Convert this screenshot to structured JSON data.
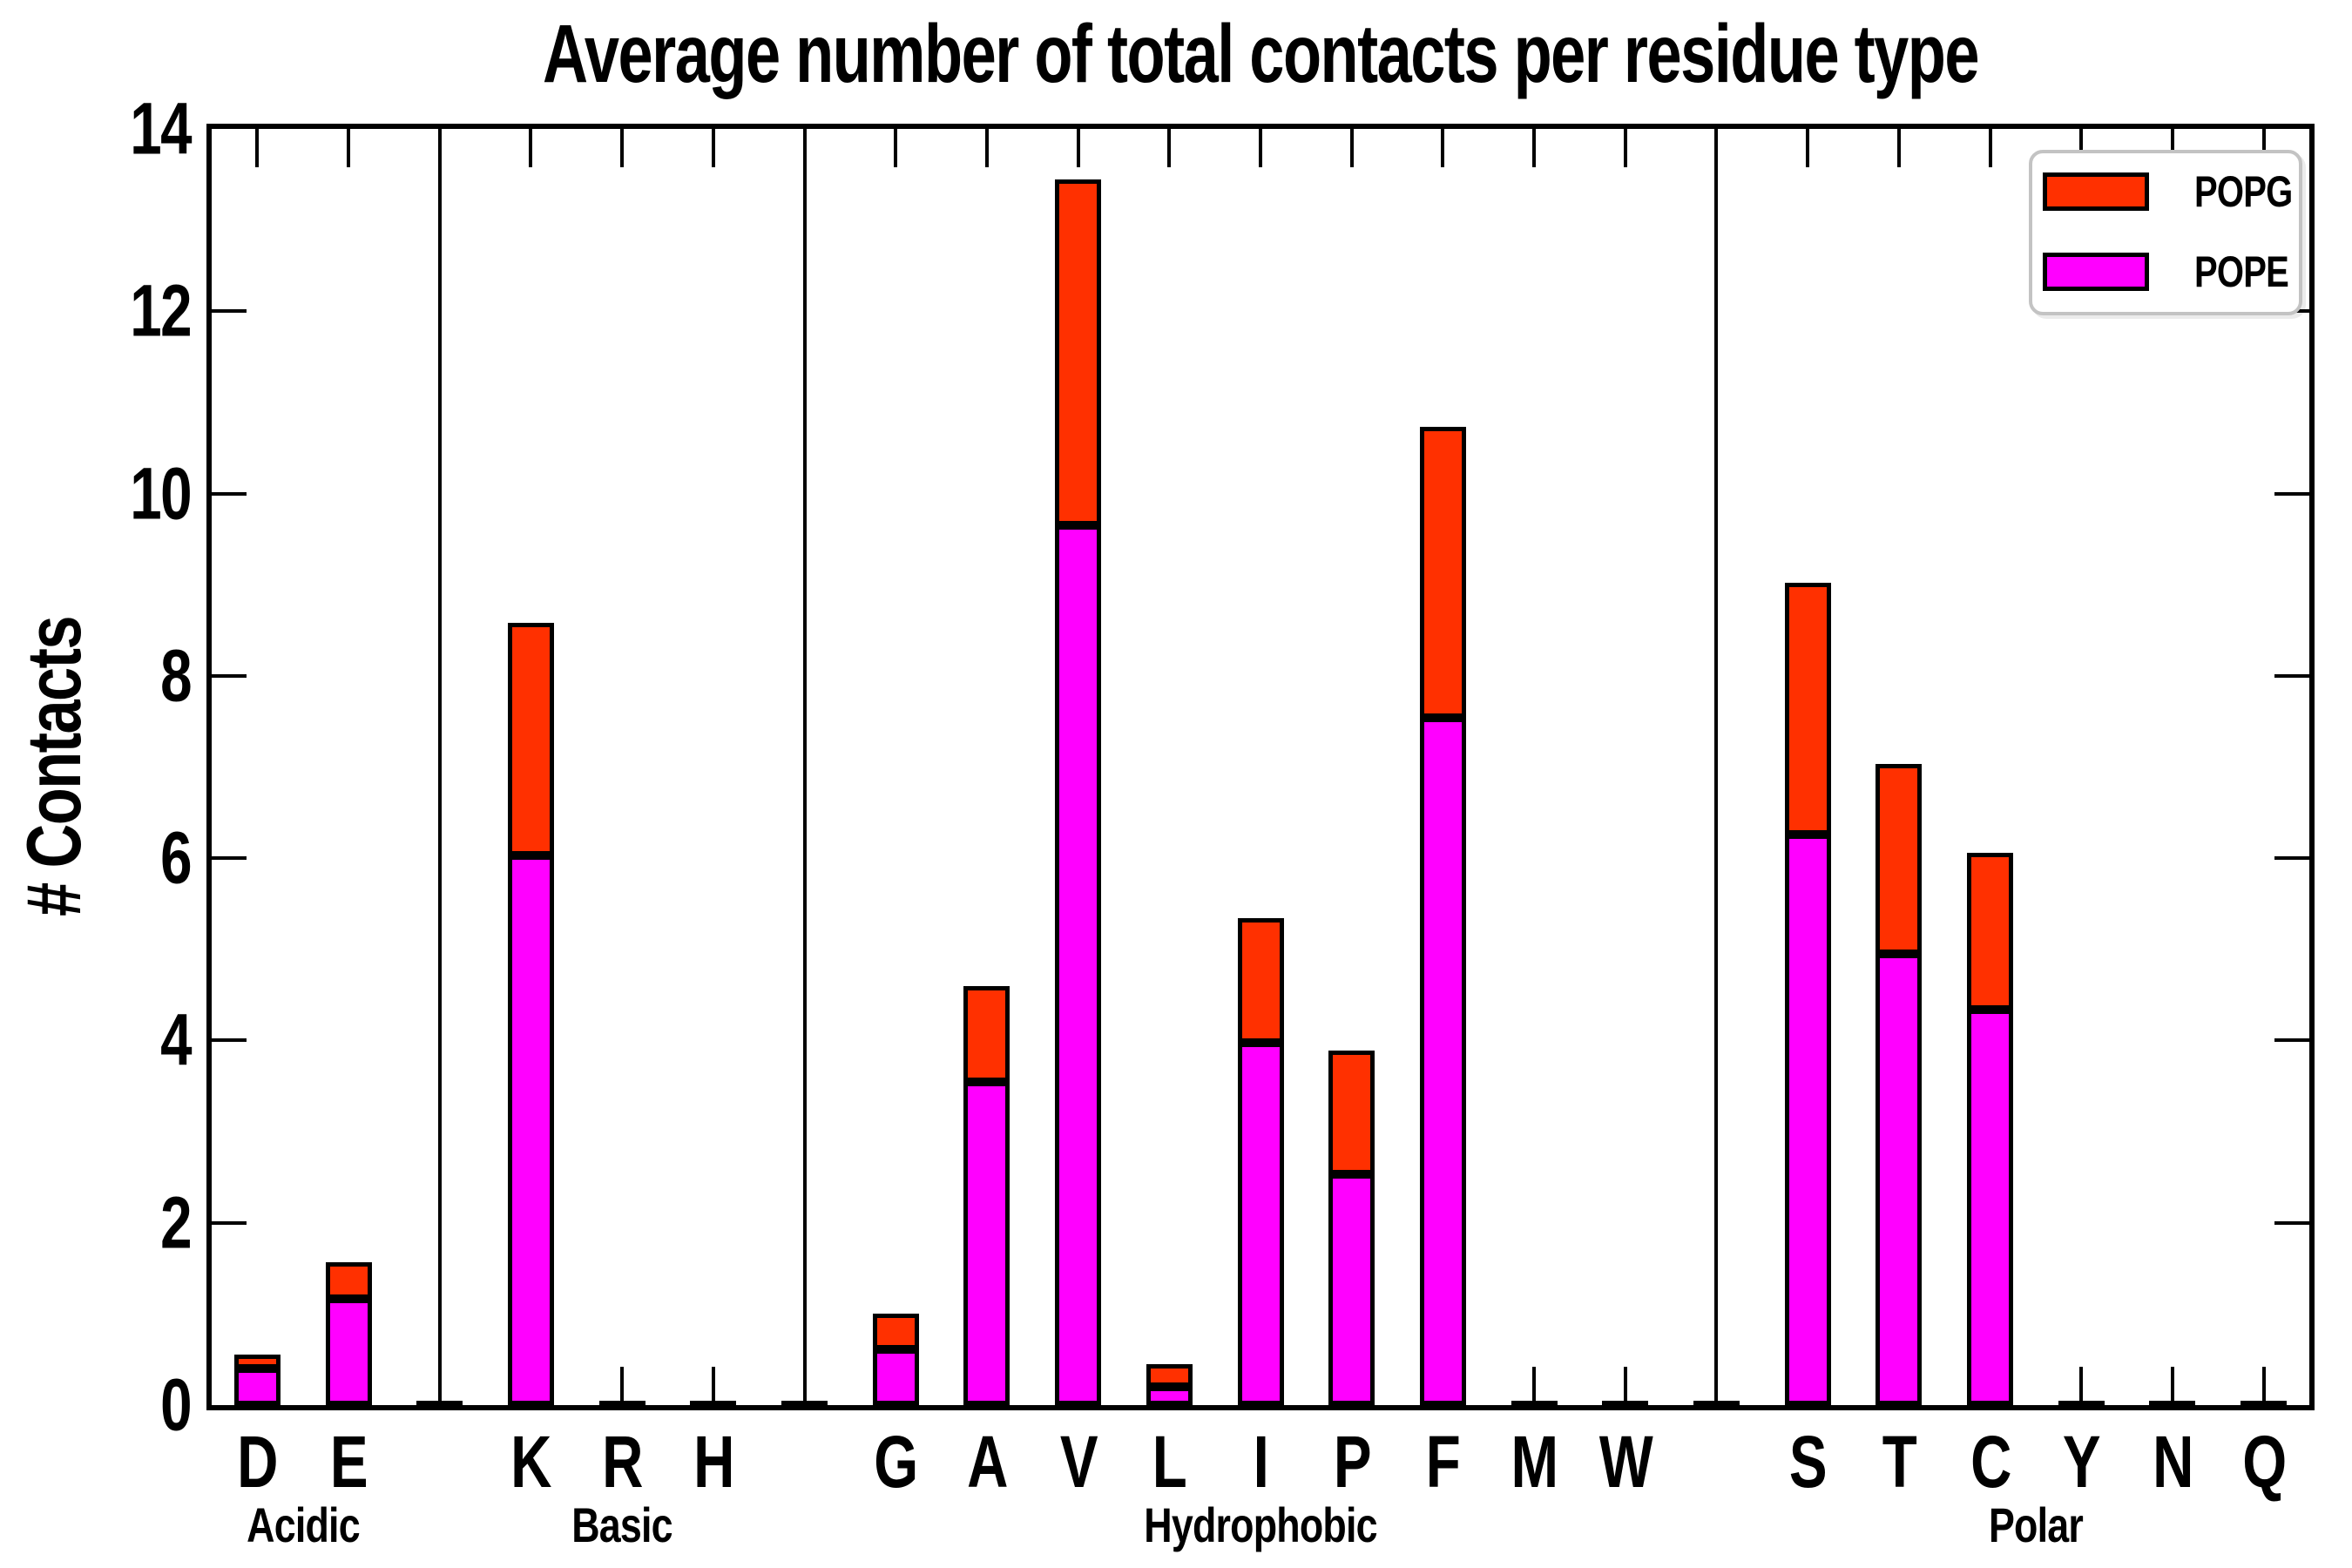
{
  "chart_data": {
    "type": "bar",
    "subtype": "stacked-vertical",
    "title": "Average number of total contacts per residue type",
    "xlabel": "",
    "ylabel": "# Contacts",
    "ylim": [
      0,
      14
    ],
    "ytick_step": 2,
    "ytick_labels": [
      "0",
      "2",
      "4",
      "6",
      "8",
      "10",
      "12",
      "14"
    ],
    "grid": false,
    "legend_position": "upper right",
    "legend": [
      {
        "label": "POPG",
        "color": "#ff3000"
      },
      {
        "label": "POPE",
        "color": "#ff00ff"
      }
    ],
    "colors": {
      "POPG": "#ff3000",
      "POPE": "#ff00ff",
      "bar_edge": "#000000"
    },
    "series_note": "POPE is the bottom (magenta) segment, POPG is stacked on top (red)",
    "groups": [
      {
        "name": "Acidic",
        "residues": [
          {
            "label": "D",
            "POPE": 0.4,
            "POPG": 0.15
          },
          {
            "label": "E",
            "POPE": 1.17,
            "POPG": 0.4
          }
        ]
      },
      {
        "name": "Basic",
        "residues": [
          {
            "label": "K",
            "POPE": 6.03,
            "POPG": 2.55
          },
          {
            "label": "R",
            "POPE": 0.0,
            "POPG": 0.0
          },
          {
            "label": "H",
            "POPE": 0.0,
            "POPG": 0.0
          }
        ]
      },
      {
        "name": "Hydrophobic",
        "residues": [
          {
            "label": "G",
            "POPE": 0.61,
            "POPG": 0.39
          },
          {
            "label": "A",
            "POPE": 3.55,
            "POPG": 1.05
          },
          {
            "label": "V",
            "POPE": 9.65,
            "POPG": 3.8
          },
          {
            "label": "L",
            "POPE": 0.2,
            "POPG": 0.25
          },
          {
            "label": "I",
            "POPE": 3.98,
            "POPG": 1.36
          },
          {
            "label": "P",
            "POPE": 2.53,
            "POPG": 1.36
          },
          {
            "label": "F",
            "POPE": 7.54,
            "POPG": 3.19
          },
          {
            "label": "M",
            "POPE": 0.0,
            "POPG": 0.0
          },
          {
            "label": "W",
            "POPE": 0.0,
            "POPG": 0.0
          }
        ]
      },
      {
        "name": "Polar",
        "residues": [
          {
            "label": "S",
            "POPE": 6.26,
            "POPG": 2.76
          },
          {
            "label": "T",
            "POPE": 4.95,
            "POPG": 2.08
          },
          {
            "label": "C",
            "POPE": 4.34,
            "POPG": 1.72
          },
          {
            "label": "Y",
            "POPE": 0.0,
            "POPG": 0.0
          },
          {
            "label": "N",
            "POPE": 0.0,
            "POPG": 0.0
          },
          {
            "label": "Q",
            "POPE": 0.0,
            "POPG": 0.0
          }
        ]
      }
    ]
  }
}
